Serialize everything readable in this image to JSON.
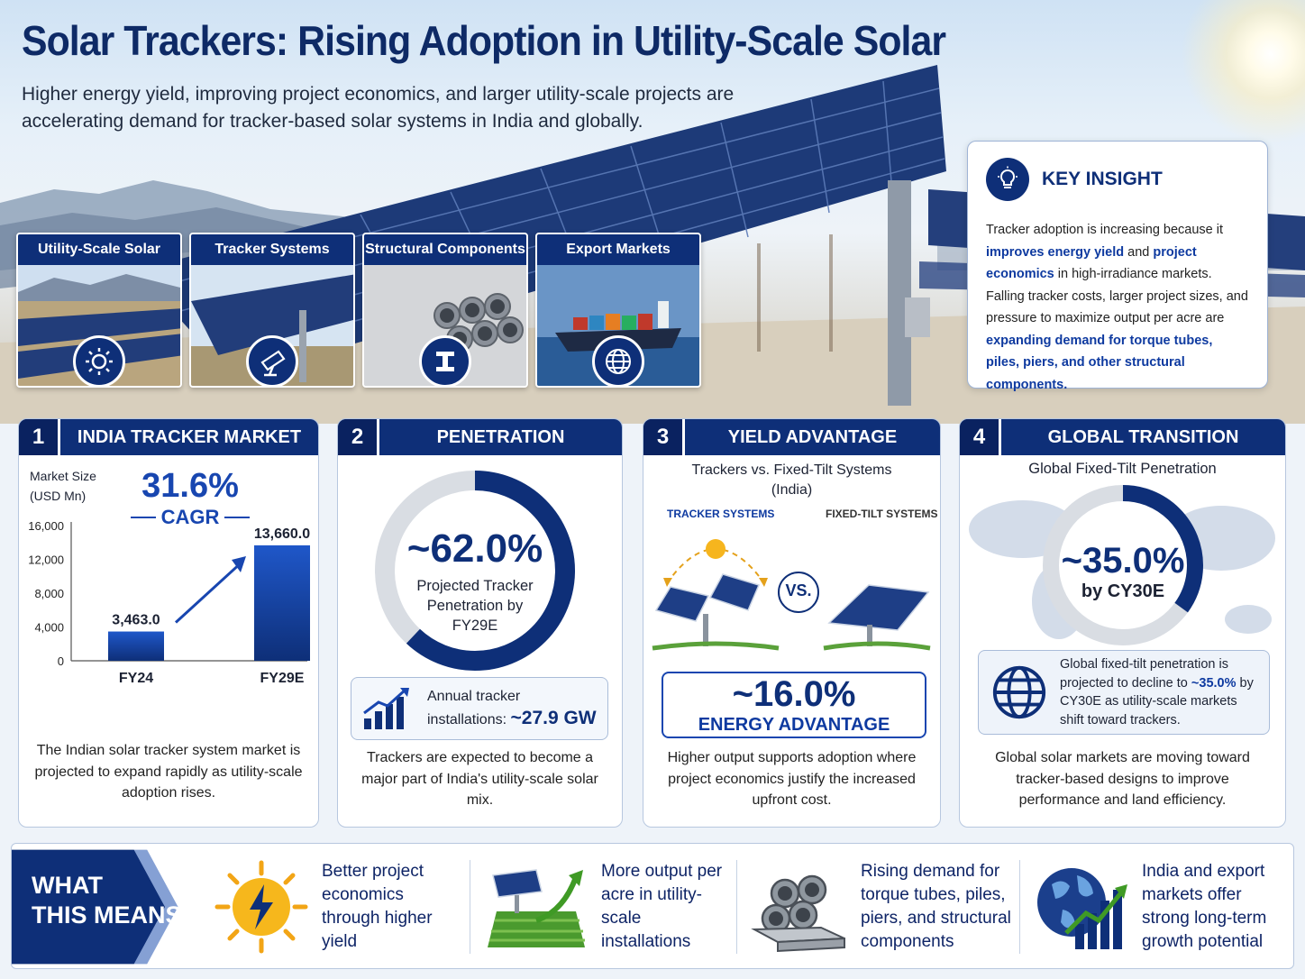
{
  "title": "Solar Trackers: Rising Adoption in Utility-Scale Solar",
  "subtitle": "Higher energy yield, improving project economics, and larger utility-scale projects are accelerating demand for tracker-based solar systems in India and globally.",
  "thumbs": [
    {
      "label": "Utility-Scale Solar",
      "icon": "sun-icon"
    },
    {
      "label": "Tracker Systems",
      "icon": "tracker-icon"
    },
    {
      "label": "Structural Components",
      "icon": "beam-icon"
    },
    {
      "label": "Export Markets",
      "icon": "globe-icon"
    }
  ],
  "insight": {
    "title": "KEY INSIGHT",
    "p1": "Tracker adoption is increasing because it",
    "h1": "improves energy yield",
    "p2": "and",
    "h2": "project economics",
    "p3": "in high-irradiance markets. Falling tracker costs, larger project sizes, and pressure to maximize output per acre are",
    "h3": "expanding demand for torque tubes, piles, piers, and other structural components."
  },
  "cards": [
    {
      "num": "1",
      "title": "INDIA TRACKER MARKET"
    },
    {
      "num": "2",
      "title": "PENETRATION"
    },
    {
      "num": "3",
      "title": "YIELD ADVANTAGE"
    },
    {
      "num": "4",
      "title": "GLOBAL TRANSITION"
    }
  ],
  "market": {
    "axis_title_1": "Market Size",
    "axis_title_2": "(USD Mn)",
    "cagr_value": "31.6%",
    "cagr_label": "CAGR",
    "footer": "The Indian solar tracker system market is projected to expand rapidly as utility-scale adoption rises."
  },
  "chart_data": {
    "type": "bar",
    "categories": [
      "FY24",
      "FY29E"
    ],
    "values": [
      3463.0,
      13660.0
    ],
    "value_labels": [
      "3,463.0",
      "13,660.0"
    ],
    "ylabel": "Market Size (USD Mn)",
    "ylim": [
      0,
      16000
    ],
    "yticks": [
      0,
      4000,
      8000,
      12000,
      16000
    ],
    "ytick_labels": [
      "0",
      "4,000",
      "8,000",
      "12,000",
      "16,000"
    ],
    "annotation": "31.6% CAGR"
  },
  "penetration": {
    "value": "~62.0%",
    "fraction": 0.62,
    "caption": "Projected Tracker Penetration by FY29E",
    "install_label_1": "Annual tracker",
    "install_label_2": "installations:",
    "install_value": "~27.9 GW",
    "footer": "Trackers are expected to become a major part of India's utility-scale solar mix."
  },
  "yield": {
    "subtitle_1": "Trackers vs. Fixed-Tilt Systems",
    "subtitle_2": "(India)",
    "left_label": "TRACKER SYSTEMS",
    "right_label": "FIXED-TILT SYSTEMS",
    "vs": "VS.",
    "value": "~16.0%",
    "value_label": "ENERGY ADVANTAGE",
    "footer": "Higher output supports adoption where project economics justify the increased upfront cost."
  },
  "global": {
    "subtitle": "Global Fixed-Tilt Penetration",
    "value": "~35.0%",
    "fraction": 0.35,
    "by": "by CY30E",
    "note_1": "Global fixed-tilt penetration is",
    "note_2": "projected to decline to",
    "note_hl": "~35.0%",
    "note_3": "by CY30E as utility-scale markets shift toward trackers.",
    "footer": "Global solar markets are moving toward tracker-based designs to improve performance and land efficiency."
  },
  "bottom": {
    "label_1": "WHAT",
    "label_2": "THIS MEANS",
    "items": [
      {
        "text": "Better project economics through higher yield",
        "icon": "energy-sun-icon"
      },
      {
        "text": "More output per acre in utility-scale installations",
        "icon": "field-growth-icon"
      },
      {
        "text": "Rising demand for torque tubes, piles, piers, and structural components",
        "icon": "pipes-icon"
      },
      {
        "text": "India and export markets offer strong long-term growth potential",
        "icon": "globe-growth-icon"
      }
    ]
  },
  "colors": {
    "navy": "#0e2f78",
    "blue": "#1846b0",
    "accent": "#0e3aa0"
  }
}
